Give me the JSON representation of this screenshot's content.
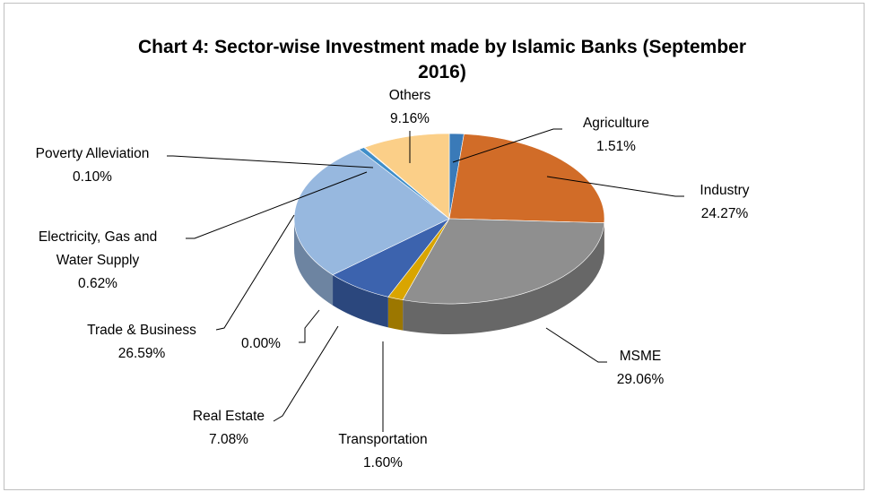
{
  "chart_data": {
    "type": "pie",
    "title": "Chart 4: Sector-wise Investment made by Islamic Banks (September 2016)",
    "title_lines": [
      "Chart 4: Sector-wise Investment made by Islamic Banks (September",
      "2016)"
    ],
    "three_d": true,
    "slices": [
      {
        "name": "Agriculture",
        "label": "1.51%",
        "value": 1.51,
        "color": "#3a7ab8"
      },
      {
        "name": "Industry",
        "label": "24.27%",
        "value": 24.27,
        "color": "#d16c28"
      },
      {
        "name": "MSME",
        "label": "29.06%",
        "value": 29.06,
        "color": "#8f8f8f"
      },
      {
        "name": "Transportation",
        "label": "1.60%",
        "value": 1.6,
        "color": "#d9a500"
      },
      {
        "name": "Real Estate",
        "label": "7.08%",
        "value": 7.08,
        "color": "#3c63ae"
      },
      {
        "name": "",
        "label": "0.00%",
        "value": 0.0,
        "color": "#5d9a3a"
      },
      {
        "name": "Trade & Business",
        "label": "26.59%",
        "value": 26.59,
        "color": "#97b8df"
      },
      {
        "name": "Electricity, Gas and Water Supply",
        "label": "0.62%",
        "value": 0.62,
        "color": "#3f8ec9"
      },
      {
        "name": "Poverty Alleviation",
        "label": "0.10%",
        "value": 0.1,
        "color": "#e8a596"
      },
      {
        "name": "Others",
        "label": "9.16%",
        "value": 9.16,
        "color": "#fbcf88"
      }
    ]
  },
  "labels": {
    "agriculture": {
      "name": "Agriculture",
      "value": "1.51%"
    },
    "industry": {
      "name": "Industry",
      "value": "24.27%"
    },
    "msme": {
      "name": "MSME",
      "value": "29.06%"
    },
    "transportation": {
      "name": "Transportation",
      "value": "1.60%"
    },
    "real_estate": {
      "name": "Real Estate",
      "value": "7.08%"
    },
    "zero": {
      "value": "0.00%"
    },
    "trade": {
      "name": "Trade & Business",
      "value": "26.59%"
    },
    "electricity": {
      "name_line1": "Electricity, Gas and",
      "name_line2": "Water Supply",
      "value": "0.62%"
    },
    "poverty": {
      "name": "Poverty Alleviation",
      "value": "0.10%"
    },
    "others": {
      "name": "Others",
      "value": "9.16%"
    }
  }
}
